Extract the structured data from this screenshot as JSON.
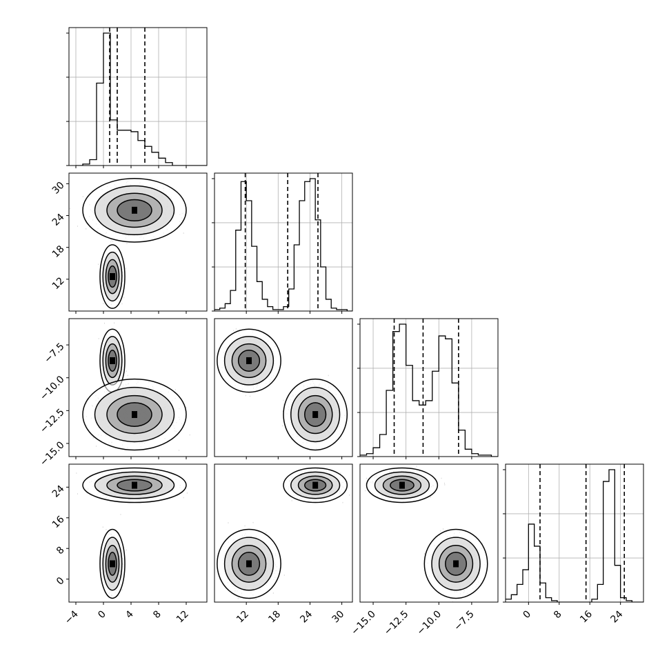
{
  "chart_data": {
    "type": "corner",
    "description_of_marks": "4x4 lower-triangular corner plot of posterior samples; diagonal = 1D histograms with dashed quantile lines, off-diagonal = 2D density (grey scatter + filled contours).",
    "parameters": [
      {
        "name": "",
        "range": [
          -5,
          15
        ],
        "ticks": [
          -4,
          0,
          4,
          8,
          12
        ],
        "tick_labels": [
          "-4",
          "0",
          "4",
          "8",
          "12"
        ],
        "quantiles": [
          0.9,
          2.0,
          6.0
        ],
        "histogram": {
          "edges_start": -4,
          "bin_width": 1,
          "counts": [
            0,
            1,
            4,
            56,
            90,
            31,
            24,
            24,
            23,
            17,
            13,
            9,
            5,
            2,
            0,
            0,
            0,
            0,
            0,
            0
          ]
        }
      },
      {
        "name": "",
        "range": [
          6,
          32
        ],
        "ticks": [
          12,
          18,
          24,
          30
        ],
        "tick_labels": [
          "12",
          "18",
          "24",
          "30"
        ],
        "quantiles": [
          11.8,
          19.8,
          25.5
        ],
        "histogram": {
          "edges_start": 6,
          "bin_width": 1,
          "counts": [
            1,
            2,
            5,
            14,
            55,
            88,
            75,
            44,
            20,
            8,
            3,
            1,
            1,
            3,
            15,
            45,
            75,
            88,
            90,
            62,
            30,
            8,
            2,
            1,
            1,
            0
          ]
        }
      },
      {
        "name": "",
        "range": [
          -16,
          -5.5
        ],
        "ticks": [
          -15.0,
          -12.5,
          -10.0,
          -7.5
        ],
        "tick_labels": [
          "-15.0",
          "-12.5",
          "-10.0",
          "-7.5"
        ],
        "quantiles": [
          -13.4,
          -11.2,
          -8.5
        ],
        "histogram": {
          "edges_start": -16,
          "bin_width": 0.5,
          "counts": [
            1,
            2,
            6,
            15,
            45,
            85,
            90,
            62,
            38,
            35,
            38,
            58,
            82,
            80,
            50,
            18,
            5,
            2,
            1,
            1,
            0
          ]
        }
      },
      {
        "name": "",
        "range": [
          -6,
          30
        ],
        "ticks": [
          0,
          8,
          16,
          24
        ],
        "tick_labels": [
          "0",
          "8",
          "16",
          "24"
        ],
        "quantiles": [
          3.0,
          15.0,
          25.0
        ],
        "histogram": {
          "edges_start": -6,
          "bin_width": 1.5,
          "counts": [
            2,
            5,
            12,
            22,
            53,
            38,
            13,
            3,
            1,
            0,
            0,
            0,
            0,
            0,
            0,
            2,
            12,
            82,
            90,
            25,
            3,
            1,
            0,
            0
          ]
        }
      }
    ],
    "modes": [
      {
        "mean": [
          1.3,
          12.5,
          -8.7,
          4.0
        ],
        "sd": [
          0.6,
          2.0,
          0.8,
          3.0
        ]
      },
      {
        "mean": [
          4.5,
          25.0,
          -12.8,
          24.5
        ],
        "sd": [
          2.5,
          2.0,
          0.9,
          1.5
        ]
      }
    ],
    "contour_scale": [
      1.0,
      1.6,
      2.3,
      3.0
    ],
    "grid": true
  }
}
